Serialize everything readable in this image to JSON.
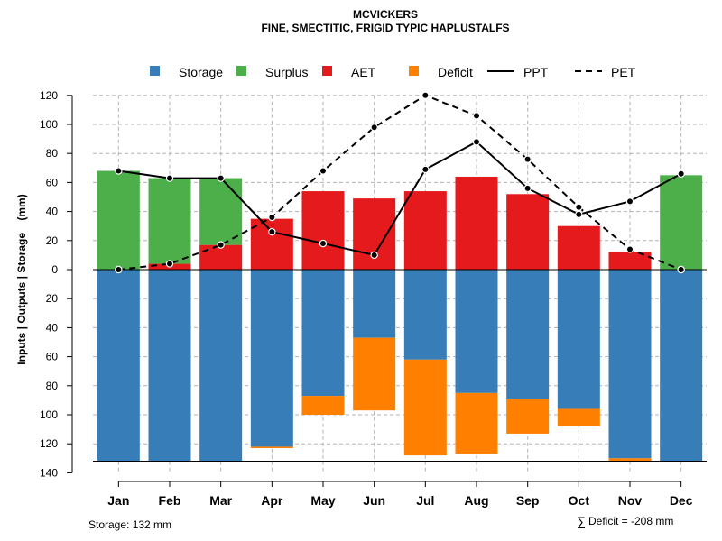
{
  "chart_data": {
    "type": "bar",
    "title": "MCVICKERS",
    "subtitle": "FINE, SMECTITIC, FRIGID TYPIC HAPLUSTALFS",
    "ylabel": "Inputs | Outputs | Storage    (mm)",
    "ylim": [
      -140,
      120
    ],
    "y_ticks": [
      -140,
      -120,
      -100,
      -80,
      -60,
      -40,
      -20,
      0,
      20,
      40,
      60,
      80,
      100,
      120
    ],
    "y_tick_labels": [
      "140",
      "120",
      "100",
      "80",
      "60",
      "40",
      "20",
      "0",
      "20",
      "40",
      "60",
      "80",
      "100",
      "120"
    ],
    "categories": [
      "Jan",
      "Feb",
      "Mar",
      "Apr",
      "May",
      "Jun",
      "Jul",
      "Aug",
      "Sep",
      "Oct",
      "Nov",
      "Dec"
    ],
    "legend": [
      {
        "name": "Storage",
        "kind": "box"
      },
      {
        "name": "Surplus",
        "kind": "box"
      },
      {
        "name": "AET",
        "kind": "box"
      },
      {
        "name": "Deficit",
        "kind": "box"
      },
      {
        "name": "PPT",
        "kind": "solid"
      },
      {
        "name": "PET",
        "kind": "dashed"
      }
    ],
    "series": [
      {
        "name": "AET",
        "values": [
          0,
          4,
          17,
          35,
          54,
          49,
          54,
          64,
          52,
          30,
          12,
          0
        ]
      },
      {
        "name": "Surplus",
        "values": [
          68,
          59,
          46,
          0,
          0,
          0,
          0,
          0,
          0,
          0,
          0,
          65
        ]
      },
      {
        "name": "Storage",
        "values": [
          132,
          132,
          132,
          122,
          87,
          47,
          62,
          85,
          89,
          96,
          130,
          132
        ]
      },
      {
        "name": "Deficit",
        "values": [
          0,
          0,
          0,
          1,
          13,
          50,
          66,
          42,
          24,
          12,
          2,
          0
        ]
      },
      {
        "name": "PPT",
        "values": [
          68,
          63,
          63,
          26,
          18,
          10,
          69,
          88,
          56,
          38,
          47,
          66
        ]
      },
      {
        "name": "PET",
        "values": [
          0,
          4,
          17,
          36,
          68,
          98,
          120,
          106,
          76,
          43,
          14,
          0
        ]
      }
    ],
    "colors": {
      "Storage": "#377eb8",
      "Surplus": "#4daf4a",
      "AET": "#e41a1c",
      "Deficit": "#ff7f00",
      "PPT": "#000000",
      "PET": "#000000",
      "grid": "#b3b3b3"
    },
    "grid": true,
    "legend_position": "top",
    "annotations": {
      "storage_total": "Storage: 132 mm",
      "deficit_symbol": "∑",
      "deficit_total": "Deficit = -208 mm"
    }
  }
}
